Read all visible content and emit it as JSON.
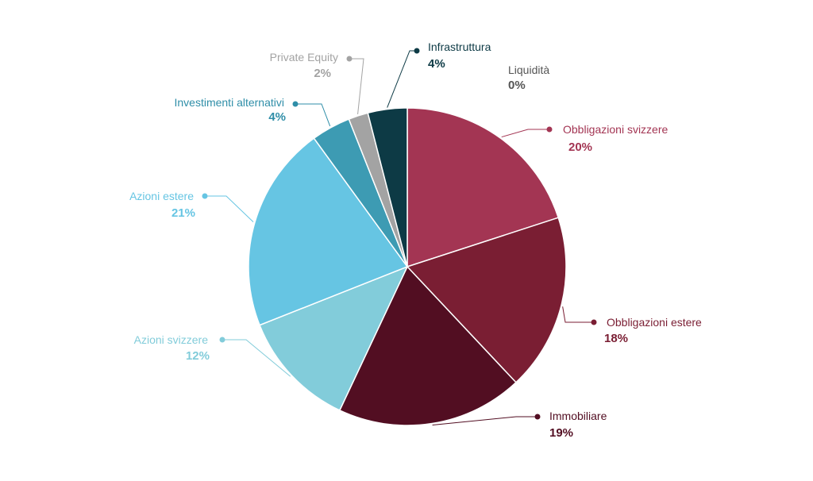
{
  "chart_data": {
    "type": "pie",
    "title": "",
    "slices": [
      {
        "label": "Obbligazioni svizzere",
        "value": 20,
        "display": "20%",
        "color": "#a33553",
        "label_color": "#a33553",
        "pct_color": "#a33553"
      },
      {
        "label": "Obbligazioni estere",
        "value": 18,
        "display": "18%",
        "color": "#7a1e33",
        "label_color": "#7a1e33",
        "pct_color": "#7a1e33"
      },
      {
        "label": "Immobiliare",
        "value": 19,
        "display": "19%",
        "color": "#520e22",
        "label_color": "#520e22",
        "pct_color": "#520e22"
      },
      {
        "label": "Azioni svizzere",
        "value": 12,
        "display": "12%",
        "color": "#82ccda",
        "label_color": "#82ccda",
        "pct_color": "#82ccda"
      },
      {
        "label": "Azioni estere",
        "value": 21,
        "display": "21%",
        "color": "#66c5e3",
        "label_color": "#66c5e3",
        "pct_color": "#66c5e3"
      },
      {
        "label": "Investimenti alternativi",
        "value": 4,
        "display": "4%",
        "color": "#3d9bb3",
        "label_color": "#2f8ea8",
        "pct_color": "#2f8ea8"
      },
      {
        "label": "Private Equity",
        "value": 2,
        "display": "2%",
        "color": "#a3a3a3",
        "label_color": "#a3a3a3",
        "pct_color": "#a3a3a3"
      },
      {
        "label": "Infrastruttura",
        "value": 4,
        "display": "4%",
        "color": "#0d3a45",
        "label_color": "#0d3a45",
        "pct_color": "#0d3a45"
      },
      {
        "label": "Liquidità",
        "value": 0,
        "display": "0%",
        "color": "#555555",
        "label_color": "#555555",
        "pct_color": "#555555"
      }
    ],
    "legend": "none",
    "data_labels": "outside-with-leader-lines"
  }
}
